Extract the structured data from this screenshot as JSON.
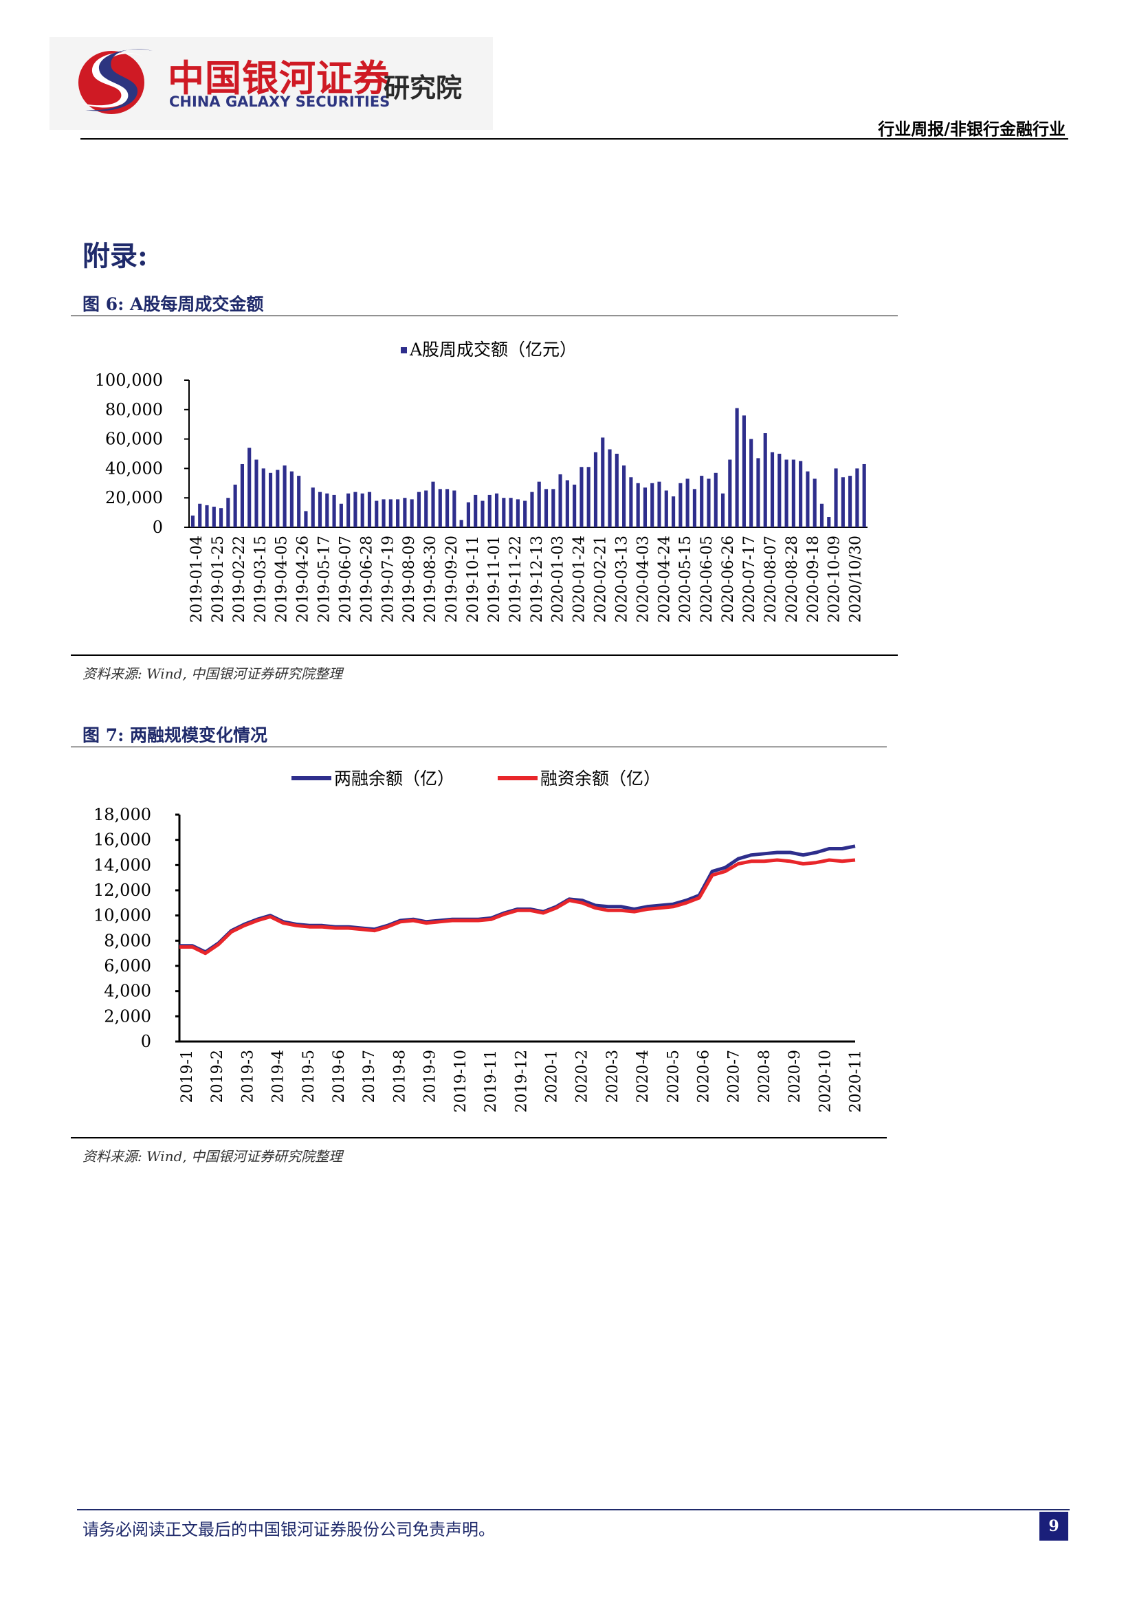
{
  "header": {
    "logo_cn": "中国银河证券",
    "logo_en": "CHINA GALAXY SECURITIES",
    "logo_institute": "研究院",
    "category": "行业周报/非银行金融行业"
  },
  "appendix_title": "附录:",
  "figures": [
    {
      "title": "图 6: A股每周成交金额",
      "source": "资料来源: Wind, 中国银河证券研究院整理"
    },
    {
      "title": "图 7: 两融规模变化情况",
      "source": "资料来源: Wind, 中国银河证券研究院整理"
    }
  ],
  "footer": {
    "disclaimer": "请务必阅读正文最后的中国银河证券股份公司免责声明。",
    "page_number": "9"
  },
  "chart_data": [
    {
      "type": "bar",
      "legend": [
        "A股周成交额（亿元）"
      ],
      "series_color": "#2e2e8c",
      "ylim": [
        0,
        100000
      ],
      "y_ticks": [
        "100,000",
        "80,000",
        "60,000",
        "40,000",
        "20,000",
        "0"
      ],
      "x_tick_labels": [
        "2019-01-04",
        "2019-01-25",
        "2019-02-22",
        "2019-03-15",
        "2019-04-05",
        "2019-04-26",
        "2019-05-17",
        "2019-06-07",
        "2019-06-28",
        "2019-07-19",
        "2019-08-09",
        "2019-08-30",
        "2019-09-20",
        "2019-10-11",
        "2019-11-01",
        "2019-11-22",
        "2019-12-13",
        "2020-01-03",
        "2020-01-24",
        "2020-02-21",
        "2020-03-13",
        "2020-04-03",
        "2020-04-24",
        "2020-05-15",
        "2020-06-05",
        "2020-06-26",
        "2020-07-17",
        "2020-08-07",
        "2020-08-28",
        "2020-09-18",
        "2020-10-09",
        "2020/10/30"
      ],
      "values": [
        8000,
        16000,
        15000,
        14000,
        13000,
        20000,
        29000,
        43000,
        54000,
        46000,
        40000,
        37000,
        39000,
        42000,
        38000,
        35000,
        11000,
        27000,
        24000,
        23000,
        22000,
        16000,
        23000,
        24000,
        23000,
        24000,
        18000,
        19000,
        19000,
        19000,
        20000,
        19000,
        24000,
        25000,
        31000,
        26000,
        26000,
        25000,
        5000,
        17000,
        22000,
        18000,
        22000,
        23000,
        20000,
        20000,
        19000,
        18000,
        24000,
        31000,
        26000,
        26000,
        36000,
        32000,
        29000,
        41000,
        41000,
        51000,
        61000,
        53000,
        50000,
        42000,
        34000,
        30000,
        27000,
        30000,
        31000,
        25000,
        21000,
        30000,
        33000,
        26000,
        35000,
        33000,
        37000,
        23000,
        46000,
        81000,
        76000,
        60000,
        47000,
        64000,
        51000,
        50000,
        46000,
        46000,
        45000,
        38000,
        33000,
        16000,
        7000,
        40000,
        34000,
        35000,
        40000,
        43000
      ]
    },
    {
      "type": "line",
      "series": [
        {
          "name": "两融余额（亿）",
          "color": "#2e2e8c",
          "values": [
            7600,
            7600,
            7100,
            7800,
            8800,
            9300,
            9700,
            10000,
            9500,
            9300,
            9200,
            9200,
            9100,
            9100,
            9000,
            8900,
            9200,
            9600,
            9700,
            9500,
            9600,
            9700,
            9700,
            9700,
            9800,
            10200,
            10500,
            10500,
            10300,
            10700,
            11300,
            11200,
            10800,
            10700,
            10700,
            10500,
            10700,
            10800,
            10900,
            11200,
            11600,
            13500,
            13800,
            14500,
            14800,
            14900,
            15000,
            15000,
            14800,
            15000,
            15300,
            15300,
            15500
          ]
        },
        {
          "name": "融资余额（亿）",
          "color": "#e8262a",
          "values": [
            7500,
            7500,
            7000,
            7700,
            8700,
            9200,
            9600,
            9900,
            9400,
            9200,
            9100,
            9100,
            9000,
            9000,
            8900,
            8800,
            9100,
            9500,
            9600,
            9400,
            9500,
            9600,
            9600,
            9600,
            9700,
            10100,
            10400,
            10400,
            10200,
            10600,
            11200,
            11000,
            10600,
            10400,
            10400,
            10300,
            10500,
            10600,
            10700,
            11000,
            11400,
            13200,
            13500,
            14100,
            14300,
            14300,
            14400,
            14300,
            14100,
            14200,
            14400,
            14300,
            14400
          ]
        }
      ],
      "ylim": [
        0,
        18000
      ],
      "y_ticks": [
        "18,000",
        "16,000",
        "14,000",
        "12,000",
        "10,000",
        "8,000",
        "6,000",
        "4,000",
        "2,000",
        "0"
      ],
      "x_tick_labels": [
        "2019-1",
        "2019-2",
        "2019-3",
        "2019-4",
        "2019-5",
        "2019-6",
        "2019-7",
        "2019-8",
        "2019-9",
        "2019-10",
        "2019-11",
        "2019-12",
        "2020-1",
        "2020-2",
        "2020-3",
        "2020-4",
        "2020-5",
        "2020-6",
        "2020-7",
        "2020-8",
        "2020-9",
        "2020-10",
        "2020-11"
      ]
    }
  ]
}
